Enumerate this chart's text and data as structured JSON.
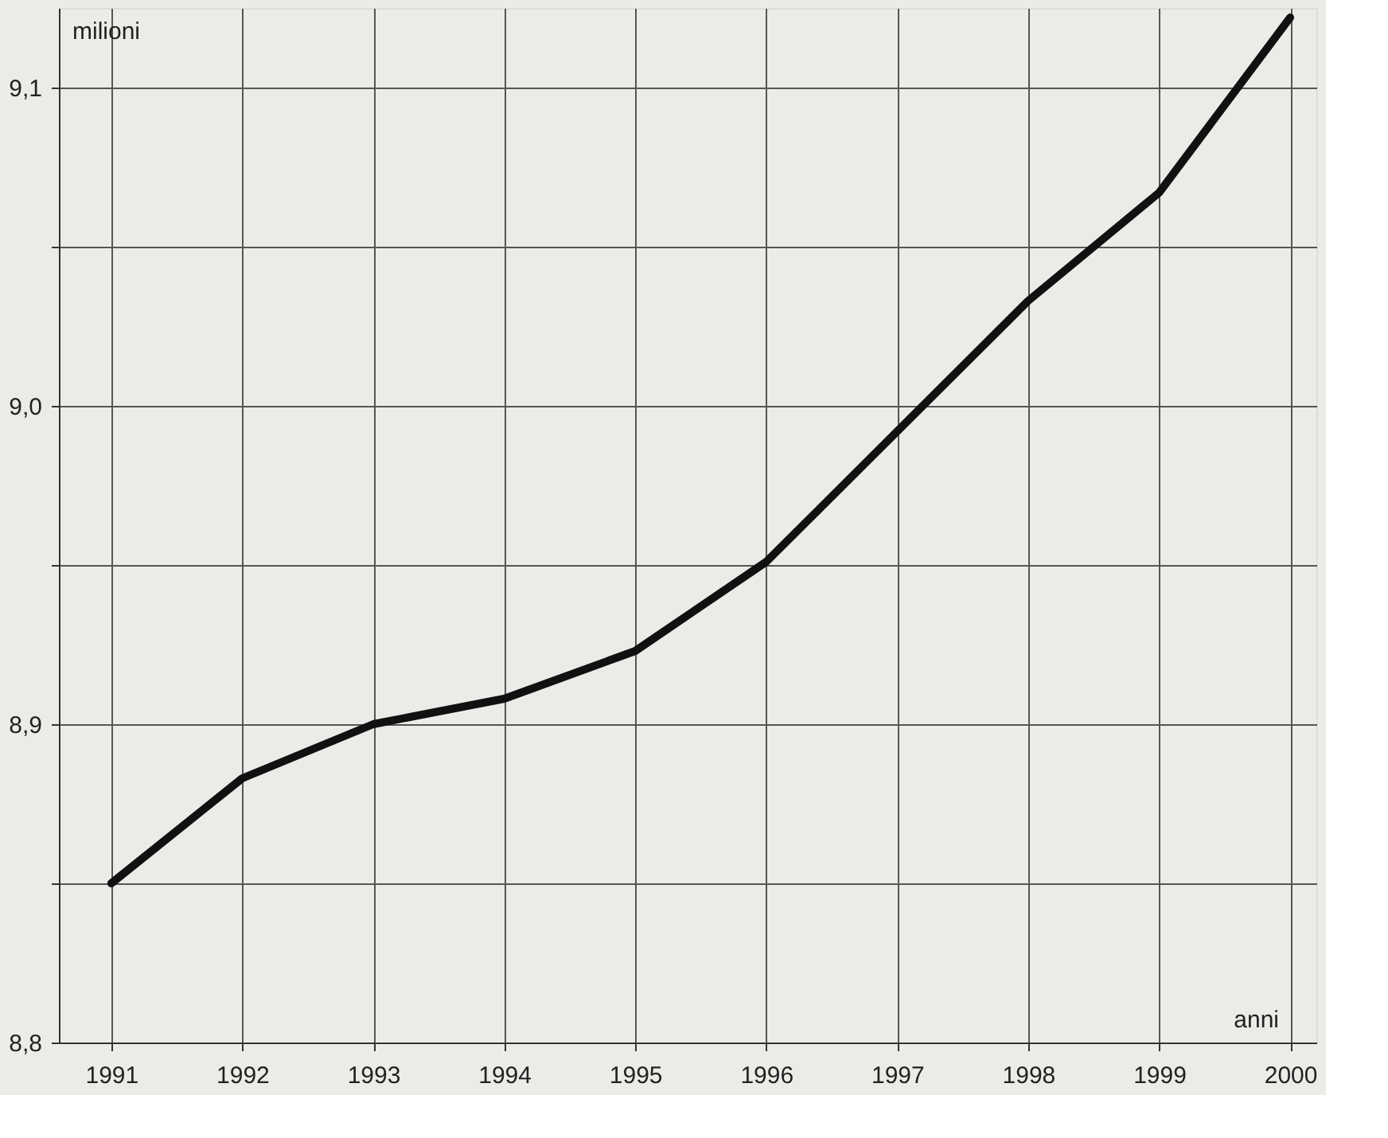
{
  "chart_data": {
    "type": "line",
    "xlabel": "anni",
    "ylabel": "milioni",
    "x": [
      1991,
      1992,
      1993,
      1994,
      1995,
      1996,
      1997,
      1998,
      1999,
      2000
    ],
    "series": [
      {
        "color": "#111111",
        "values": [
          8.85,
          8.883,
          8.9,
          8.908,
          8.923,
          8.951,
          8.992,
          9.033,
          9.067,
          9.122
        ]
      }
    ],
    "xlim": [
      1990.6,
      2000.2
    ],
    "xticks": [
      1991,
      1992,
      1993,
      1994,
      1995,
      1996,
      1997,
      1998,
      1999,
      2000
    ],
    "ylim": [
      8.8,
      9.125
    ],
    "yticks": [
      {
        "value": 8.8,
        "label": "8,8"
      },
      {
        "value": 8.85,
        "label": null
      },
      {
        "value": 8.9,
        "label": "8,9"
      },
      {
        "value": 8.95,
        "label": null
      },
      {
        "value": 9.0,
        "label": "9,0"
      },
      {
        "value": 9.05,
        "label": null
      },
      {
        "value": 9.1,
        "label": "9,1"
      }
    ],
    "grid": true,
    "marker": "none",
    "line_style": "solid"
  }
}
